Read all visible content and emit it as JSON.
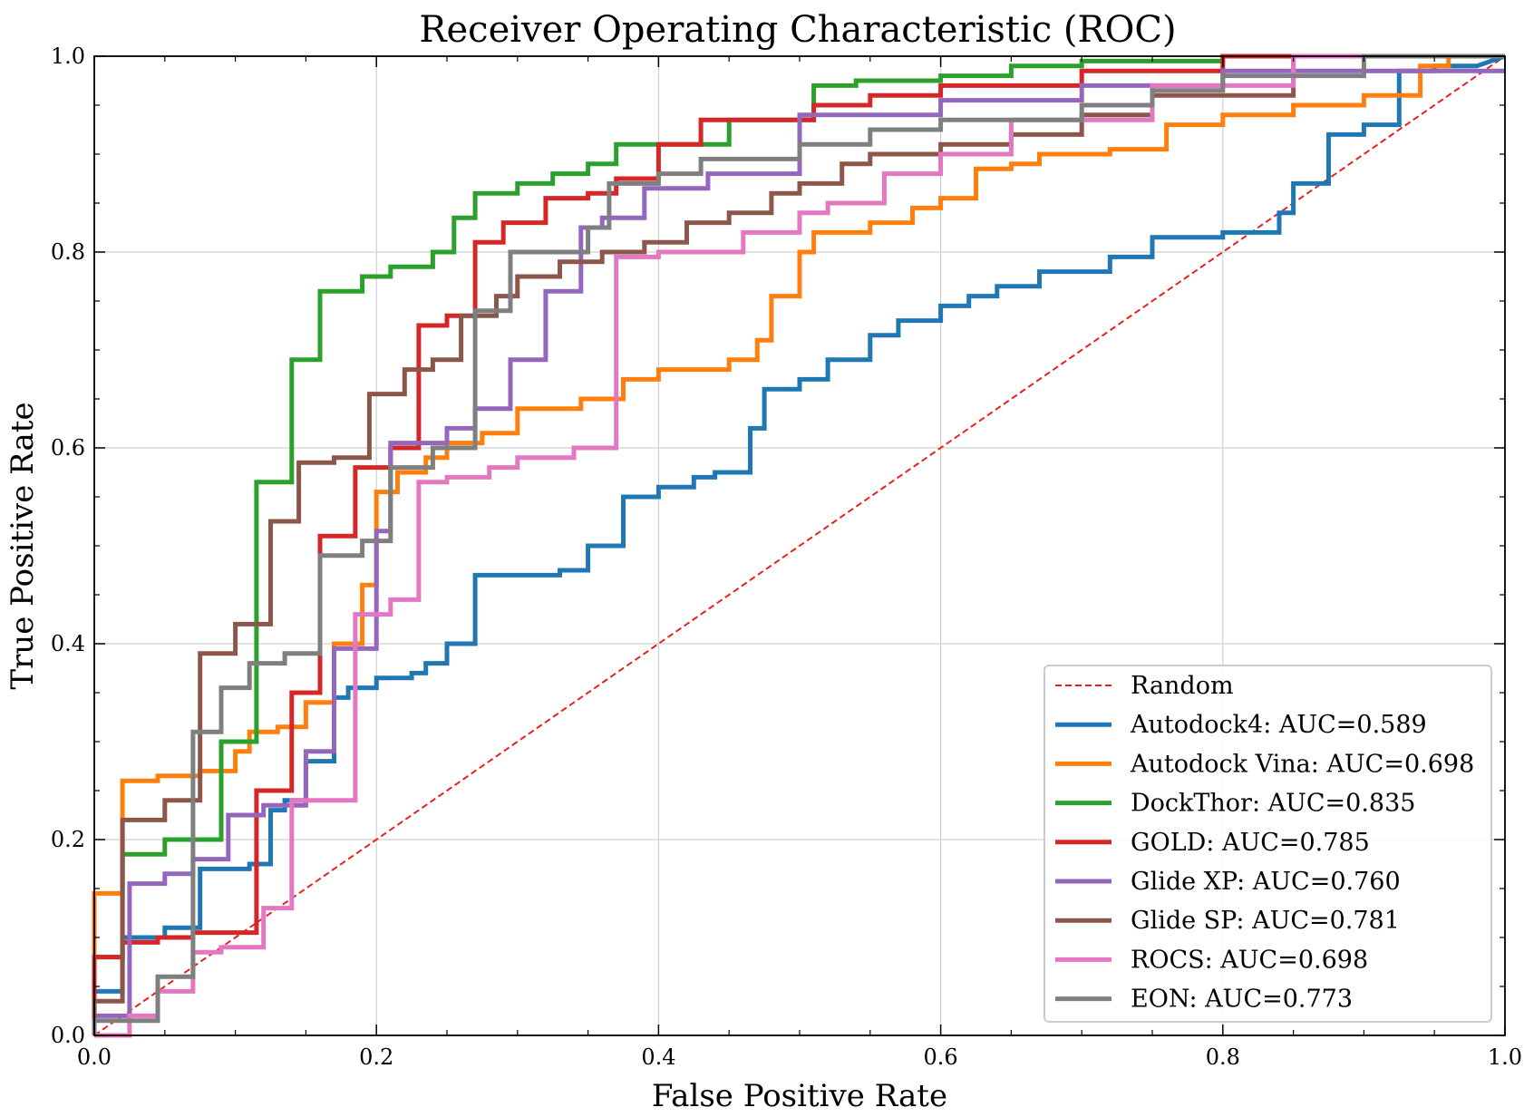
{
  "chart_data": {
    "type": "line",
    "title": "Receiver Operating Characteristic (ROC)",
    "xlabel": "False Positive Rate",
    "ylabel": "True Positive Rate",
    "xlim": [
      0.0,
      1.0
    ],
    "ylim": [
      0.0,
      1.0
    ],
    "xticks": [
      "0.0",
      "0.2",
      "0.4",
      "0.6",
      "0.8",
      "1.0"
    ],
    "yticks": [
      "0.0",
      "0.2",
      "0.4",
      "0.6",
      "0.8",
      "1.0"
    ],
    "grid": true,
    "legend_position": "lower-right",
    "reference_line": {
      "label": "Random",
      "color": "#e8211e",
      "style": "dashed",
      "x": [
        0,
        1
      ],
      "y": [
        0,
        1
      ]
    },
    "series": [
      {
        "name": "Autodock4: AUC=0.589",
        "color": "#1f77b4",
        "x": [
          0.0,
          0.0,
          0.02,
          0.02,
          0.05,
          0.05,
          0.075,
          0.075,
          0.11,
          0.11,
          0.125,
          0.125,
          0.135,
          0.135,
          0.15,
          0.15,
          0.17,
          0.17,
          0.18,
          0.18,
          0.2,
          0.2,
          0.225,
          0.225,
          0.235,
          0.235,
          0.25,
          0.25,
          0.27,
          0.27,
          0.33,
          0.33,
          0.35,
          0.35,
          0.375,
          0.375,
          0.4,
          0.4,
          0.425,
          0.425,
          0.44,
          0.44,
          0.465,
          0.465,
          0.475,
          0.475,
          0.5,
          0.5,
          0.52,
          0.52,
          0.55,
          0.55,
          0.57,
          0.57,
          0.6,
          0.6,
          0.62,
          0.62,
          0.64,
          0.64,
          0.67,
          0.67,
          0.72,
          0.72,
          0.75,
          0.75,
          0.8,
          0.8,
          0.84,
          0.84,
          0.85,
          0.85,
          0.875,
          0.875,
          0.9,
          0.9,
          0.925,
          0.925,
          0.95,
          0.95,
          0.98,
          0.98,
          1.0
        ],
        "y": [
          0.0,
          0.045,
          0.045,
          0.1,
          0.1,
          0.11,
          0.11,
          0.17,
          0.17,
          0.175,
          0.175,
          0.23,
          0.23,
          0.24,
          0.24,
          0.28,
          0.28,
          0.345,
          0.345,
          0.355,
          0.355,
          0.365,
          0.365,
          0.37,
          0.37,
          0.38,
          0.38,
          0.4,
          0.4,
          0.47,
          0.47,
          0.475,
          0.475,
          0.5,
          0.5,
          0.55,
          0.55,
          0.56,
          0.56,
          0.57,
          0.57,
          0.575,
          0.575,
          0.62,
          0.62,
          0.66,
          0.66,
          0.67,
          0.67,
          0.69,
          0.69,
          0.715,
          0.715,
          0.73,
          0.73,
          0.745,
          0.745,
          0.755,
          0.755,
          0.765,
          0.765,
          0.78,
          0.78,
          0.795,
          0.795,
          0.815,
          0.815,
          0.82,
          0.82,
          0.84,
          0.84,
          0.87,
          0.87,
          0.92,
          0.92,
          0.93,
          0.93,
          0.985,
          0.985,
          0.99,
          0.99,
          0.99,
          1.0
        ]
      },
      {
        "name": "Autodock Vina: AUC=0.698",
        "color": "#ff7f0e",
        "x": [
          0.0,
          0.0,
          0.02,
          0.02,
          0.045,
          0.045,
          0.075,
          0.075,
          0.1,
          0.1,
          0.11,
          0.11,
          0.13,
          0.13,
          0.15,
          0.15,
          0.17,
          0.17,
          0.19,
          0.19,
          0.2,
          0.2,
          0.215,
          0.215,
          0.235,
          0.235,
          0.25,
          0.25,
          0.275,
          0.275,
          0.3,
          0.3,
          0.345,
          0.345,
          0.375,
          0.375,
          0.4,
          0.4,
          0.45,
          0.45,
          0.47,
          0.47,
          0.48,
          0.48,
          0.5,
          0.5,
          0.51,
          0.51,
          0.55,
          0.55,
          0.58,
          0.58,
          0.6,
          0.6,
          0.625,
          0.625,
          0.65,
          0.65,
          0.67,
          0.67,
          0.72,
          0.72,
          0.76,
          0.76,
          0.8,
          0.8,
          0.85,
          0.85,
          0.9,
          0.9,
          0.94,
          0.94,
          0.96,
          0.96,
          1.0
        ],
        "y": [
          0.0,
          0.145,
          0.145,
          0.26,
          0.26,
          0.265,
          0.265,
          0.27,
          0.27,
          0.29,
          0.29,
          0.31,
          0.31,
          0.315,
          0.315,
          0.34,
          0.34,
          0.4,
          0.4,
          0.46,
          0.46,
          0.555,
          0.555,
          0.575,
          0.575,
          0.59,
          0.59,
          0.605,
          0.605,
          0.615,
          0.615,
          0.64,
          0.64,
          0.65,
          0.65,
          0.67,
          0.67,
          0.68,
          0.68,
          0.69,
          0.69,
          0.71,
          0.71,
          0.755,
          0.755,
          0.8,
          0.8,
          0.82,
          0.82,
          0.83,
          0.83,
          0.845,
          0.845,
          0.855,
          0.855,
          0.885,
          0.885,
          0.89,
          0.89,
          0.9,
          0.9,
          0.905,
          0.905,
          0.93,
          0.93,
          0.94,
          0.94,
          0.95,
          0.95,
          0.96,
          0.96,
          0.99,
          0.99,
          1.0,
          1.0
        ]
      },
      {
        "name": "DockThor: AUC=0.835",
        "color": "#2ca02c",
        "x": [
          0.0,
          0.0,
          0.02,
          0.02,
          0.05,
          0.05,
          0.09,
          0.09,
          0.115,
          0.115,
          0.14,
          0.14,
          0.16,
          0.16,
          0.19,
          0.19,
          0.21,
          0.21,
          0.24,
          0.24,
          0.255,
          0.255,
          0.27,
          0.27,
          0.3,
          0.3,
          0.325,
          0.325,
          0.35,
          0.35,
          0.37,
          0.37,
          0.45,
          0.45,
          0.48,
          0.48,
          0.51,
          0.51,
          0.54,
          0.54,
          0.6,
          0.6,
          0.65,
          0.65,
          0.7,
          0.7,
          0.8,
          0.8,
          1.0
        ],
        "y": [
          0.0,
          0.08,
          0.08,
          0.185,
          0.185,
          0.2,
          0.2,
          0.3,
          0.3,
          0.565,
          0.565,
          0.69,
          0.69,
          0.76,
          0.76,
          0.775,
          0.775,
          0.785,
          0.785,
          0.8,
          0.8,
          0.835,
          0.835,
          0.86,
          0.86,
          0.87,
          0.87,
          0.88,
          0.88,
          0.89,
          0.89,
          0.91,
          0.91,
          0.935,
          0.935,
          0.935,
          0.935,
          0.97,
          0.97,
          0.975,
          0.975,
          0.98,
          0.98,
          0.99,
          0.99,
          0.995,
          0.995,
          1.0,
          1.0
        ]
      },
      {
        "name": "GOLD: AUC=0.785",
        "color": "#d62728",
        "x": [
          0.0,
          0.0,
          0.02,
          0.02,
          0.045,
          0.045,
          0.07,
          0.07,
          0.115,
          0.115,
          0.14,
          0.14,
          0.16,
          0.16,
          0.185,
          0.185,
          0.21,
          0.21,
          0.23,
          0.23,
          0.25,
          0.25,
          0.27,
          0.27,
          0.29,
          0.29,
          0.32,
          0.32,
          0.35,
          0.35,
          0.37,
          0.37,
          0.4,
          0.4,
          0.43,
          0.43,
          0.51,
          0.51,
          0.55,
          0.55,
          0.6,
          0.6,
          0.7,
          0.7,
          0.8,
          0.8,
          1.0
        ],
        "y": [
          0.0,
          0.08,
          0.08,
          0.095,
          0.095,
          0.1,
          0.1,
          0.105,
          0.105,
          0.25,
          0.25,
          0.35,
          0.35,
          0.51,
          0.51,
          0.58,
          0.58,
          0.6,
          0.6,
          0.725,
          0.725,
          0.735,
          0.735,
          0.81,
          0.81,
          0.83,
          0.83,
          0.855,
          0.855,
          0.86,
          0.86,
          0.875,
          0.875,
          0.91,
          0.91,
          0.935,
          0.935,
          0.95,
          0.95,
          0.96,
          0.96,
          0.97,
          0.97,
          0.985,
          0.985,
          1.0,
          1.0
        ]
      },
      {
        "name": "Glide XP: AUC=0.760",
        "color": "#9467bd",
        "x": [
          0.0,
          0.0,
          0.025,
          0.025,
          0.05,
          0.05,
          0.07,
          0.07,
          0.095,
          0.095,
          0.12,
          0.12,
          0.15,
          0.15,
          0.17,
          0.17,
          0.2,
          0.2,
          0.21,
          0.21,
          0.25,
          0.25,
          0.27,
          0.27,
          0.295,
          0.295,
          0.32,
          0.32,
          0.345,
          0.345,
          0.36,
          0.36,
          0.39,
          0.39,
          0.435,
          0.435,
          0.5,
          0.5,
          0.6,
          0.6,
          0.7,
          0.7,
          0.8,
          0.8,
          1.0
        ],
        "y": [
          0.0,
          0.02,
          0.02,
          0.155,
          0.155,
          0.165,
          0.165,
          0.18,
          0.18,
          0.225,
          0.225,
          0.235,
          0.235,
          0.29,
          0.29,
          0.395,
          0.395,
          0.515,
          0.515,
          0.605,
          0.605,
          0.62,
          0.62,
          0.64,
          0.64,
          0.69,
          0.69,
          0.76,
          0.76,
          0.825,
          0.825,
          0.835,
          0.835,
          0.865,
          0.865,
          0.88,
          0.88,
          0.94,
          0.94,
          0.955,
          0.955,
          0.97,
          0.97,
          0.985,
          0.985
        ]
      },
      {
        "name": "Glide SP: AUC=0.781",
        "color": "#8c564b",
        "x": [
          0.0,
          0.0,
          0.02,
          0.02,
          0.05,
          0.05,
          0.075,
          0.075,
          0.1,
          0.1,
          0.125,
          0.125,
          0.145,
          0.145,
          0.17,
          0.17,
          0.195,
          0.195,
          0.22,
          0.22,
          0.24,
          0.24,
          0.26,
          0.26,
          0.285,
          0.285,
          0.3,
          0.3,
          0.33,
          0.33,
          0.36,
          0.36,
          0.39,
          0.39,
          0.42,
          0.42,
          0.45,
          0.45,
          0.48,
          0.48,
          0.5,
          0.5,
          0.53,
          0.53,
          0.55,
          0.55,
          0.6,
          0.6,
          0.65,
          0.65,
          0.7,
          0.7,
          0.75,
          0.75,
          0.85,
          0.85,
          1.0
        ],
        "y": [
          0.0,
          0.035,
          0.035,
          0.22,
          0.22,
          0.24,
          0.24,
          0.39,
          0.39,
          0.42,
          0.42,
          0.525,
          0.525,
          0.585,
          0.585,
          0.59,
          0.59,
          0.655,
          0.655,
          0.68,
          0.68,
          0.69,
          0.69,
          0.735,
          0.735,
          0.755,
          0.755,
          0.775,
          0.775,
          0.79,
          0.79,
          0.8,
          0.8,
          0.81,
          0.81,
          0.83,
          0.83,
          0.84,
          0.84,
          0.86,
          0.86,
          0.87,
          0.87,
          0.89,
          0.89,
          0.9,
          0.9,
          0.91,
          0.91,
          0.92,
          0.92,
          0.94,
          0.94,
          0.96,
          0.96,
          1.0,
          1.0
        ]
      },
      {
        "name": "ROCS: AUC=0.698",
        "color": "#e377c2",
        "x": [
          0.0,
          0.0,
          0.025,
          0.025,
          0.045,
          0.045,
          0.07,
          0.07,
          0.09,
          0.09,
          0.12,
          0.12,
          0.14,
          0.14,
          0.185,
          0.185,
          0.21,
          0.21,
          0.23,
          0.23,
          0.25,
          0.25,
          0.28,
          0.28,
          0.3,
          0.3,
          0.34,
          0.34,
          0.37,
          0.37,
          0.4,
          0.4,
          0.46,
          0.46,
          0.5,
          0.5,
          0.52,
          0.52,
          0.56,
          0.56,
          0.6,
          0.6,
          0.65,
          0.65,
          0.75,
          0.75,
          0.85,
          0.85,
          1.0
        ],
        "y": [
          0.0,
          0.0,
          0.0,
          0.02,
          0.02,
          0.045,
          0.045,
          0.085,
          0.085,
          0.09,
          0.09,
          0.13,
          0.13,
          0.24,
          0.24,
          0.43,
          0.43,
          0.445,
          0.445,
          0.565,
          0.565,
          0.57,
          0.57,
          0.58,
          0.58,
          0.59,
          0.59,
          0.6,
          0.6,
          0.795,
          0.795,
          0.8,
          0.8,
          0.82,
          0.82,
          0.84,
          0.84,
          0.85,
          0.85,
          0.88,
          0.88,
          0.9,
          0.9,
          0.935,
          0.935,
          0.97,
          0.97,
          1.0,
          1.0
        ]
      },
      {
        "name": "EON: AUC=0.773",
        "color": "#7f7f7f",
        "x": [
          0.0,
          0.0,
          0.045,
          0.045,
          0.07,
          0.07,
          0.09,
          0.09,
          0.11,
          0.11,
          0.135,
          0.135,
          0.16,
          0.16,
          0.19,
          0.19,
          0.21,
          0.21,
          0.24,
          0.24,
          0.27,
          0.27,
          0.295,
          0.295,
          0.35,
          0.35,
          0.365,
          0.365,
          0.4,
          0.4,
          0.43,
          0.43,
          0.5,
          0.5,
          0.55,
          0.55,
          0.6,
          0.6,
          0.7,
          0.7,
          0.75,
          0.75,
          0.8,
          0.8,
          0.9,
          0.9,
          1.0
        ],
        "y": [
          0.0,
          0.015,
          0.015,
          0.06,
          0.06,
          0.31,
          0.31,
          0.355,
          0.355,
          0.38,
          0.38,
          0.39,
          0.39,
          0.49,
          0.49,
          0.505,
          0.505,
          0.58,
          0.58,
          0.6,
          0.6,
          0.74,
          0.74,
          0.8,
          0.8,
          0.825,
          0.825,
          0.87,
          0.87,
          0.88,
          0.88,
          0.895,
          0.895,
          0.91,
          0.91,
          0.925,
          0.925,
          0.935,
          0.935,
          0.95,
          0.95,
          0.965,
          0.965,
          0.98,
          0.98,
          1.0,
          1.0
        ]
      }
    ]
  }
}
